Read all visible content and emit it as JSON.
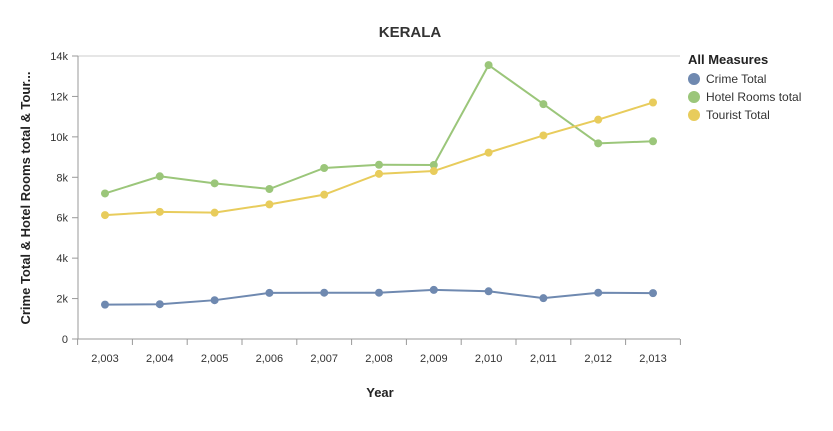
{
  "chart_data": {
    "type": "line",
    "title": "KERALA",
    "xlabel": "Year",
    "ylabel": "Crime Total & Hotel Rooms total & Tour...",
    "categories": [
      "2,003",
      "2,004",
      "2,005",
      "2,006",
      "2,007",
      "2,008",
      "2,009",
      "2,010",
      "2,011",
      "2,012",
      "2,013"
    ],
    "ylim": [
      0,
      14000
    ],
    "yticks": [
      {
        "value": 0,
        "label": "0"
      },
      {
        "value": 2000,
        "label": "2k"
      },
      {
        "value": 4000,
        "label": "4k"
      },
      {
        "value": 6000,
        "label": "6k"
      },
      {
        "value": 8000,
        "label": "8k"
      },
      {
        "value": 10000,
        "label": "10k"
      },
      {
        "value": 12000,
        "label": "12k"
      },
      {
        "value": 14000,
        "label": "14k"
      }
    ],
    "grid": false,
    "legend": {
      "title": "All Measures",
      "placement": "right"
    },
    "series": [
      {
        "name": "Crime Total",
        "color": "#6f89b0",
        "values": [
          1700,
          1720,
          1920,
          2280,
          2290,
          2290,
          2430,
          2360,
          2020,
          2290,
          2270
        ]
      },
      {
        "name": "Hotel Rooms total",
        "color": "#9bc67a",
        "values": [
          7200,
          8050,
          7700,
          7420,
          8460,
          8620,
          8610,
          13550,
          11620,
          9680,
          9780
        ]
      },
      {
        "name": "Tourist Total",
        "color": "#e8cc5c",
        "values": [
          6130,
          6290,
          6250,
          6660,
          7140,
          8170,
          8310,
          9220,
          10070,
          10850,
          11700
        ]
      }
    ]
  }
}
